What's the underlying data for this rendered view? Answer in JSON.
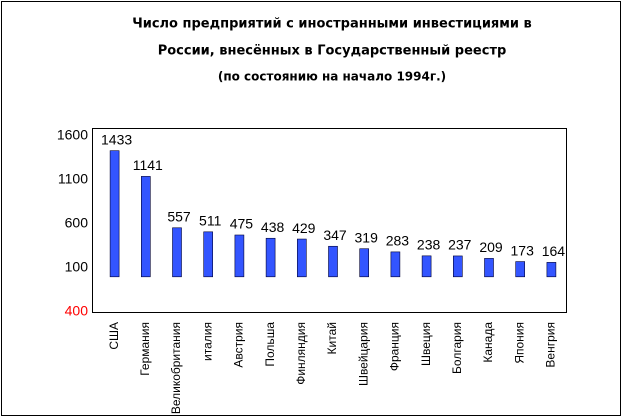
{
  "chart_data": {
    "type": "bar",
    "title_lines": [
      "Число предприятий с иностранными инвестициями в",
      "России, внесённых в Государственный реестр"
    ],
    "subtitle": "(по состоянию на начало 1994г.)",
    "categories": [
      "США",
      "Германия",
      "Великобритания",
      "италия",
      "Австрия",
      "Польша",
      "Финляндия",
      "Китай",
      "Швейцария",
      "Франция",
      "Швеция",
      "Болгария",
      "Канада",
      "Япония",
      "Венгрия"
    ],
    "values": [
      1433,
      1141,
      557,
      511,
      475,
      438,
      429,
      347,
      319,
      283,
      238,
      237,
      209,
      173,
      164
    ],
    "color": "#3355ff",
    "ylim": [
      -400,
      1600
    ],
    "yticks": [
      1600,
      1100,
      600,
      100,
      {
        "value": -400,
        "label": "400"
      }
    ],
    "negative_tick_color": "#ff0000"
  }
}
